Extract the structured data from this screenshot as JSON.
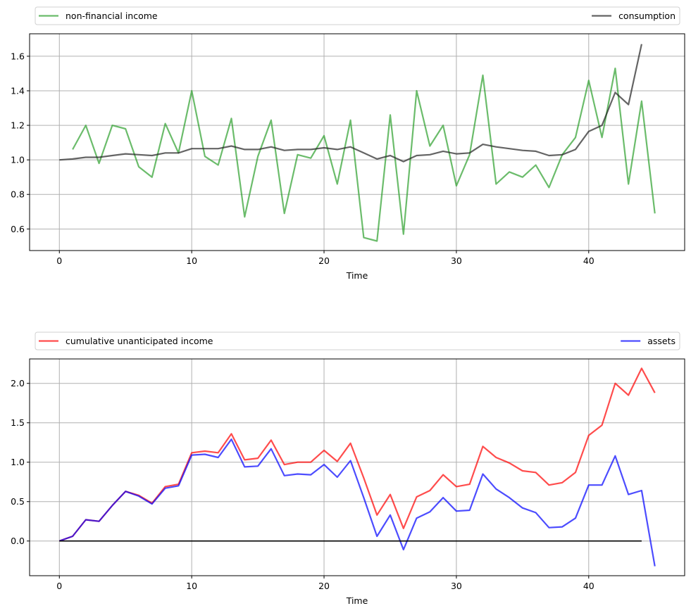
{
  "chart_data": [
    {
      "type": "line",
      "xlabel": "Time",
      "ylabel": "",
      "xlim": [
        -2.25,
        47.25
      ],
      "ylim": [
        0.475,
        1.73
      ],
      "xticks": [
        0,
        10,
        20,
        30,
        40
      ],
      "yticks": [
        0.6,
        0.8,
        1.0,
        1.2,
        1.4,
        1.6
      ],
      "ytick_labels": [
        "0.6",
        "0.8",
        "1.0",
        "1.2",
        "1.4",
        "1.6"
      ],
      "grid": true,
      "legend_placement": "above, expanded",
      "series": [
        {
          "name": "non-financial income",
          "color": "#2ca02c",
          "x_start": 1,
          "values": [
            1.06,
            1.2,
            0.98,
            1.2,
            1.18,
            0.96,
            0.9,
            1.21,
            1.04,
            1.4,
            1.02,
            0.97,
            1.24,
            0.67,
            1.02,
            1.23,
            0.69,
            1.03,
            1.01,
            1.14,
            0.86,
            1.23,
            0.55,
            0.53,
            1.26,
            0.57,
            1.4,
            1.08,
            1.2,
            0.85,
            1.03,
            1.49,
            0.86,
            0.93,
            0.9,
            0.97,
            0.84,
            1.03,
            1.13,
            1.46,
            1.13,
            1.53,
            0.86,
            1.34,
            0.69
          ]
        },
        {
          "name": "consumption",
          "color": "#222222",
          "x_start": 0,
          "values": [
            1.0,
            1.005,
            1.015,
            1.015,
            1.025,
            1.035,
            1.03,
            1.025,
            1.04,
            1.04,
            1.065,
            1.065,
            1.065,
            1.08,
            1.06,
            1.06,
            1.075,
            1.055,
            1.06,
            1.06,
            1.07,
            1.06,
            1.075,
            1.04,
            1.005,
            1.025,
            0.99,
            1.025,
            1.03,
            1.05,
            1.035,
            1.04,
            1.09,
            1.075,
            1.065,
            1.055,
            1.05,
            1.025,
            1.03,
            1.06,
            1.165,
            1.2,
            1.39,
            1.32,
            1.67
          ]
        }
      ]
    },
    {
      "type": "line",
      "xlabel": "Time",
      "ylabel": "",
      "xlim": [
        -2.25,
        47.25
      ],
      "ylim": [
        -0.44,
        2.31
      ],
      "xticks": [
        0,
        10,
        20,
        30,
        40
      ],
      "yticks": [
        0.0,
        0.5,
        1.0,
        1.5,
        2.0
      ],
      "ytick_labels": [
        "0.0",
        "0.5",
        "1.0",
        "1.5",
        "2.0"
      ],
      "grid": true,
      "legend_placement": "above, expanded",
      "series": [
        {
          "name": "cumulative unanticipated income",
          "color": "#ff0000",
          "x_start": 0,
          "values": [
            0,
            0.06,
            0.27,
            0.25,
            0.45,
            0.63,
            0.58,
            0.48,
            0.69,
            0.72,
            1.12,
            1.14,
            1.12,
            1.36,
            1.03,
            1.05,
            1.28,
            0.97,
            1.0,
            1.0,
            1.15,
            1.01,
            1.24,
            0.8,
            0.33,
            0.59,
            0.16,
            0.56,
            0.64,
            0.84,
            0.69,
            0.72,
            1.2,
            1.06,
            0.99,
            0.89,
            0.87,
            0.71,
            0.74,
            0.87,
            1.34,
            1.47,
            2.0,
            1.85,
            2.19,
            1.88
          ]
        },
        {
          "name": "assets",
          "color": "#0000ff",
          "x_start": 0,
          "values": [
            0,
            0.06,
            0.27,
            0.25,
            0.45,
            0.63,
            0.57,
            0.47,
            0.67,
            0.7,
            1.09,
            1.1,
            1.06,
            1.29,
            0.94,
            0.95,
            1.17,
            0.83,
            0.85,
            0.84,
            0.97,
            0.81,
            1.02,
            0.55,
            0.06,
            0.33,
            -0.11,
            0.29,
            0.37,
            0.55,
            0.38,
            0.39,
            0.85,
            0.66,
            0.55,
            0.42,
            0.36,
            0.17,
            0.18,
            0.29,
            0.71,
            0.71,
            1.08,
            0.59,
            0.64,
            -0.32
          ]
        }
      ],
      "reference_line": {
        "y": 0,
        "x_from": 0,
        "x_to": 44,
        "color": "#000000"
      }
    }
  ]
}
